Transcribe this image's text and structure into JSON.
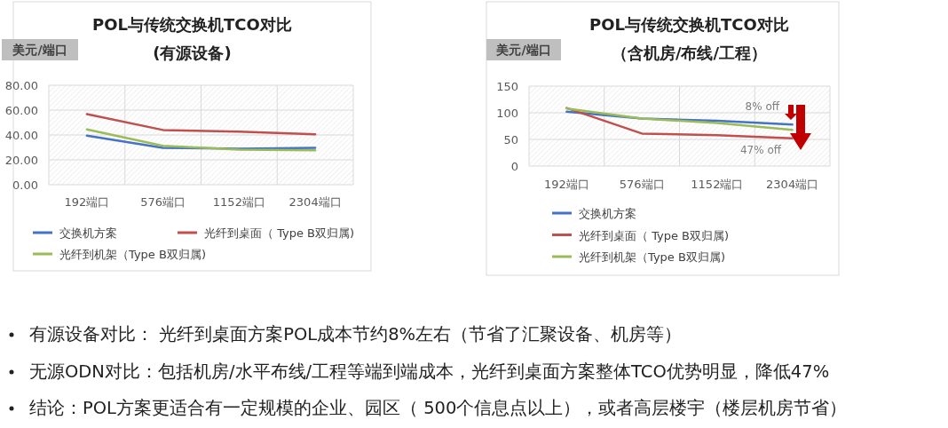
{
  "chart_data": [
    {
      "type": "line",
      "title": "POL与传统交换机TCO对比",
      "subtitle": "(有源设备)",
      "ylabel": "美元/端口",
      "categories": [
        "192端口",
        "576端口",
        "1152端口",
        "2304端口"
      ],
      "series": [
        {
          "name": "交换机方案",
          "color": "#4472c4",
          "values": [
            39.5,
            29.6,
            29,
            29.6
          ]
        },
        {
          "name": "光纤到桌面（ Type B双归属)",
          "color": "#c0504d",
          "values": [
            56.8,
            44,
            42.6,
            40.5
          ]
        },
        {
          "name": "光纤到机架（Type B双归属)",
          "color": "#9bbb59",
          "values": [
            44.5,
            31.2,
            28.2,
            27.7
          ]
        }
      ],
      "ylim": [
        0,
        80
      ],
      "yticks": [
        {
          "value": 0,
          "label": "0.00"
        },
        {
          "value": 20,
          "label": "20.00"
        },
        {
          "value": 40,
          "label": "40.00"
        },
        {
          "value": 60,
          "label": "60.00"
        },
        {
          "value": 80,
          "label": "80.00"
        }
      ],
      "grid": true,
      "legend": "bottom"
    },
    {
      "type": "line",
      "title": "POL与传统交换机TCO对比",
      "subtitle": "（含机房/布线/工程）",
      "ylabel": "美元/端口",
      "categories": [
        "192端口",
        "576端口",
        "1152端口",
        "2304端口"
      ],
      "series": [
        {
          "name": "交换机方案",
          "color": "#4472c4",
          "values": [
            102,
            89,
            85,
            78
          ]
        },
        {
          "name": "光纤到桌面（ Type B双归属)",
          "color": "#c0504d",
          "values": [
            109,
            61,
            58,
            52
          ]
        },
        {
          "name": "光纤到机架（Type B双归属)",
          "color": "#9bbb59",
          "values": [
            108,
            89,
            81,
            68
          ]
        }
      ],
      "ylim": [
        0,
        150
      ],
      "yticks": [
        0,
        50,
        100,
        150
      ],
      "grid": true,
      "legend": "bottom",
      "annotations": [
        "8% off",
        "47% off"
      ]
    },
    {
      "type": "other",
      "annotations": [
        "有源设备对比： 光纤到桌面方案POL成本节约8%左右（节省了汇聚设备、机房等）",
        "无源ODN对比：包括机房/水平布线/工程等端到端成本，光纤到桌面方案整体TCO优势明显，降低47%",
        "结论：POL方案更适合有一定规模的企业、园区（ 500个信息点以上），或者高层楼宇（楼层机房节省）"
      ]
    }
  ]
}
